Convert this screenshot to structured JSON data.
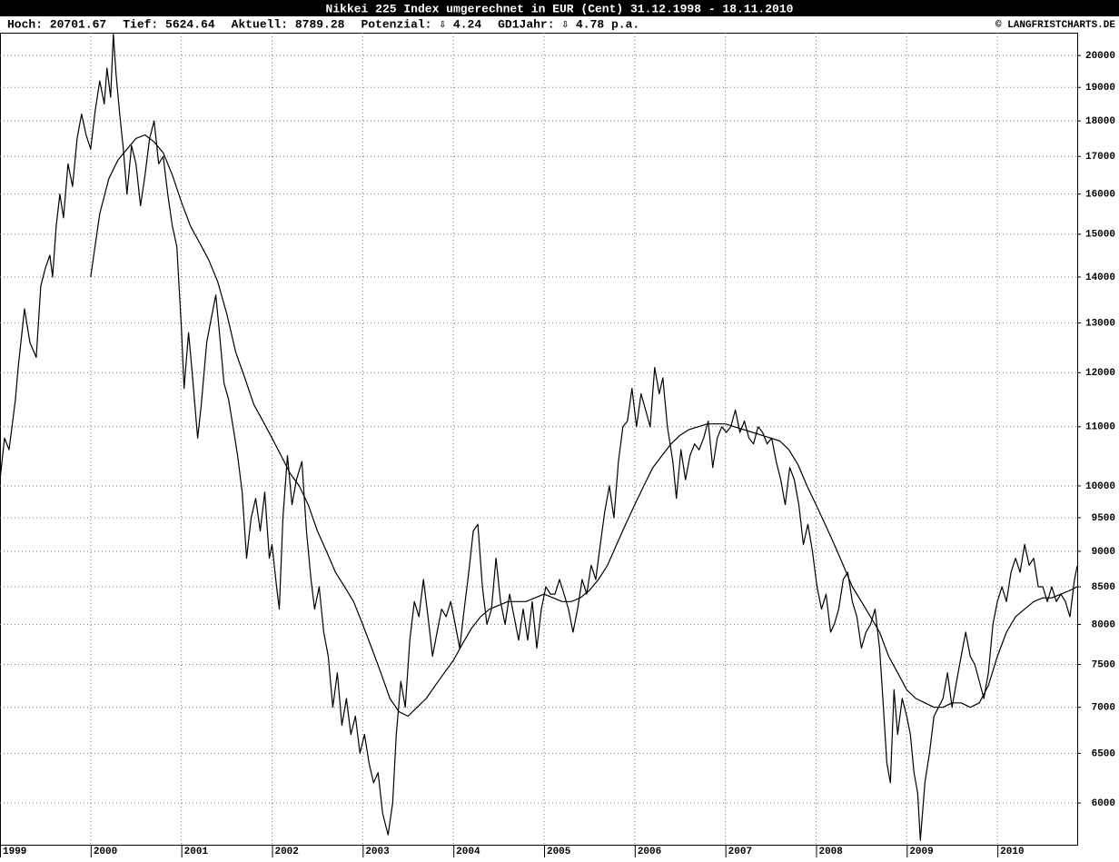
{
  "chart_data": {
    "type": "line",
    "title": "Nikkei 225 Index umgerechnet in EUR (Cent) 31.12.1998 - 18.11.2010",
    "stats": [
      "Hoch: 20701.67",
      "Tief: 5624.64",
      "Aktuell: 8789.28",
      "Potenzial: ⇩ 4.24",
      "GD1Jahr: ⇩ 4.78 p.a."
    ],
    "copyright": "© LANGFRISTCHARTS.DE",
    "log_scale": true,
    "grid": true,
    "xlim": [
      1999,
      2010.88
    ],
    "xticks": [
      1999,
      2000,
      2001,
      2002,
      2003,
      2004,
      2005,
      2006,
      2007,
      2008,
      2009,
      2010
    ],
    "ylim": [
      5610,
      20750
    ],
    "yticks": [
      6000,
      6500,
      7000,
      7500,
      8000,
      8500,
      9000,
      9500,
      10000,
      11000,
      12000,
      13000,
      14000,
      15000,
      16000,
      17000,
      18000,
      19000,
      20000
    ],
    "series": [
      {
        "color": "#000000",
        "x": [
          1999.0,
          1999.05,
          1999.1,
          1999.17,
          1999.2,
          1999.27,
          1999.33,
          1999.4,
          1999.45,
          1999.5,
          1999.55,
          1999.58,
          1999.62,
          1999.66,
          1999.7,
          1999.75,
          1999.8,
          1999.85,
          1999.9,
          1999.95,
          2000.0,
          2000.05,
          2000.1,
          2000.15,
          2000.18,
          2000.22,
          2000.25,
          2000.28,
          2000.32,
          2000.36,
          2000.4,
          2000.45,
          2000.5,
          2000.55,
          2000.6,
          2000.65,
          2000.7,
          2000.75,
          2000.8,
          2000.85,
          2000.9,
          2000.95,
          2001.0,
          2001.03,
          2001.08,
          2001.12,
          2001.18,
          2001.22,
          2001.28,
          2001.33,
          2001.38,
          2001.42,
          2001.47,
          2001.52,
          2001.58,
          2001.62,
          2001.67,
          2001.72,
          2001.77,
          2001.82,
          2001.87,
          2001.92,
          2001.97,
          2002.0,
          2002.05,
          2002.08,
          2002.12,
          2002.17,
          2002.22,
          2002.27,
          2002.33,
          2002.38,
          2002.43,
          2002.47,
          2002.52,
          2002.57,
          2002.62,
          2002.67,
          2002.72,
          2002.77,
          2002.82,
          2002.87,
          2002.92,
          2002.97,
          2003.02,
          2003.07,
          2003.12,
          2003.17,
          2003.22,
          2003.28,
          2003.33,
          2003.37,
          2003.42,
          2003.47,
          2003.52,
          2003.57,
          2003.62,
          2003.67,
          2003.72,
          2003.77,
          2003.82,
          2003.87,
          2003.92,
          2003.97,
          2004.02,
          2004.07,
          2004.12,
          2004.17,
          2004.22,
          2004.27,
          2004.32,
          2004.37,
          2004.42,
          2004.47,
          2004.52,
          2004.57,
          2004.62,
          2004.67,
          2004.72,
          2004.77,
          2004.82,
          2004.87,
          2004.92,
          2004.97,
          2005.02,
          2005.07,
          2005.12,
          2005.17,
          2005.22,
          2005.27,
          2005.32,
          2005.37,
          2005.42,
          2005.47,
          2005.52,
          2005.57,
          2005.62,
          2005.67,
          2005.72,
          2005.77,
          2005.82,
          2005.87,
          2005.92,
          2005.97,
          2006.02,
          2006.07,
          2006.12,
          2006.17,
          2006.22,
          2006.27,
          2006.31,
          2006.36,
          2006.42,
          2006.46,
          2006.51,
          2006.56,
          2006.61,
          2006.66,
          2006.71,
          2006.76,
          2006.81,
          2006.86,
          2006.91,
          2006.96,
          2007.01,
          2007.06,
          2007.11,
          2007.16,
          2007.21,
          2007.26,
          2007.31,
          2007.36,
          2007.41,
          2007.46,
          2007.51,
          2007.56,
          2007.61,
          2007.66,
          2007.71,
          2007.76,
          2007.81,
          2007.86,
          2007.91,
          2007.96,
          2008.01,
          2008.06,
          2008.11,
          2008.16,
          2008.2,
          2008.25,
          2008.3,
          2008.35,
          2008.4,
          2008.45,
          2008.5,
          2008.55,
          2008.6,
          2008.65,
          2008.7,
          2008.73,
          2008.78,
          2008.82,
          2008.86,
          2008.9,
          2008.95,
          2009.0,
          2009.04,
          2009.08,
          2009.12,
          2009.15,
          2009.2,
          2009.25,
          2009.3,
          2009.35,
          2009.4,
          2009.45,
          2009.5,
          2009.55,
          2009.6,
          2009.65,
          2009.7,
          2009.75,
          2009.8,
          2009.85,
          2009.9,
          2009.95,
          2010.0,
          2010.05,
          2010.1,
          2010.15,
          2010.2,
          2010.25,
          2010.3,
          2010.35,
          2010.4,
          2010.45,
          2010.5,
          2010.55,
          2010.6,
          2010.65,
          2010.7,
          2010.75,
          2010.8,
          2010.85,
          2010.88
        ],
        "values": [
          10100,
          10800,
          10600,
          11500,
          12100,
          13300,
          12600,
          12300,
          13800,
          14200,
          14500,
          14000,
          15200,
          16000,
          15400,
          16800,
          16200,
          17500,
          18200,
          17600,
          17200,
          18300,
          19200,
          18500,
          19600,
          18700,
          20700,
          19400,
          18200,
          17200,
          16000,
          17300,
          16800,
          15700,
          16500,
          17500,
          18000,
          16800,
          17000,
          16000,
          15200,
          14700,
          12900,
          11700,
          12800,
          12000,
          10800,
          11400,
          12600,
          13100,
          13600,
          12800,
          11800,
          11500,
          10900,
          10500,
          9900,
          8900,
          9500,
          9800,
          9300,
          9900,
          8900,
          9100,
          8500,
          8200,
          9500,
          10500,
          9700,
          10100,
          10400,
          9300,
          8600,
          8200,
          8500,
          7900,
          7600,
          7000,
          7400,
          6800,
          7100,
          6700,
          6900,
          6500,
          6700,
          6400,
          6200,
          6300,
          5900,
          5700,
          6000,
          6700,
          7300,
          7000,
          7800,
          8300,
          8100,
          8600,
          8100,
          7600,
          7900,
          8200,
          8100,
          8300,
          8000,
          7700,
          8200,
          8700,
          9300,
          9400,
          8500,
          8000,
          8200,
          8900,
          8300,
          8000,
          8400,
          8100,
          7800,
          8200,
          7800,
          8300,
          7700,
          8200,
          8500,
          8400,
          8400,
          8600,
          8400,
          8200,
          7900,
          8200,
          8600,
          8400,
          8800,
          8600,
          9100,
          9600,
          10000,
          9500,
          10400,
          11000,
          11100,
          11700,
          11000,
          11600,
          11300,
          11000,
          12100,
          11600,
          11900,
          11000,
          10400,
          9800,
          10600,
          10100,
          10500,
          10700,
          10600,
          10800,
          11100,
          10300,
          10800,
          11000,
          10900,
          11000,
          11300,
          10900,
          11100,
          10800,
          10700,
          11000,
          10900,
          10700,
          10800,
          10400,
          10100,
          9700,
          10300,
          10100,
          9700,
          9100,
          9400,
          9000,
          8500,
          8200,
          8400,
          7900,
          8000,
          8200,
          8600,
          8700,
          8300,
          8100,
          7700,
          7900,
          8000,
          8200,
          7700,
          7200,
          6400,
          6200,
          7200,
          6700,
          7100,
          6900,
          6700,
          6300,
          6100,
          5650,
          6200,
          6500,
          6900,
          7000,
          7100,
          7400,
          7000,
          7300,
          7600,
          7900,
          7600,
          7500,
          7300,
          7100,
          7400,
          8000,
          8300,
          8500,
          8300,
          8700,
          8900,
          8700,
          9100,
          8800,
          8900,
          8500,
          8500,
          8300,
          8500,
          8300,
          8400,
          8300,
          8100,
          8600,
          8789.28
        ]
      },
      {
        "color": "#000000",
        "x": [
          2000.0,
          2000.1,
          2000.2,
          2000.3,
          2000.4,
          2000.5,
          2000.6,
          2000.7,
          2000.8,
          2000.9,
          2001.0,
          2001.1,
          2001.2,
          2001.3,
          2001.4,
          2001.5,
          2001.6,
          2001.7,
          2001.8,
          2001.9,
          2002.0,
          2002.1,
          2002.2,
          2002.3,
          2002.4,
          2002.5,
          2002.6,
          2002.7,
          2002.8,
          2002.9,
          2003.0,
          2003.1,
          2003.2,
          2003.3,
          2003.4,
          2003.5,
          2003.6,
          2003.7,
          2003.8,
          2003.9,
          2004.0,
          2004.1,
          2004.2,
          2004.3,
          2004.4,
          2004.5,
          2004.6,
          2004.7,
          2004.8,
          2004.9,
          2005.0,
          2005.1,
          2005.2,
          2005.3,
          2005.4,
          2005.5,
          2005.6,
          2005.7,
          2005.8,
          2005.9,
          2006.0,
          2006.1,
          2006.2,
          2006.3,
          2006.4,
          2006.5,
          2006.6,
          2006.7,
          2006.8,
          2006.9,
          2007.0,
          2007.1,
          2007.2,
          2007.3,
          2007.4,
          2007.5,
          2007.6,
          2007.7,
          2007.8,
          2007.9,
          2008.0,
          2008.1,
          2008.2,
          2008.3,
          2008.4,
          2008.5,
          2008.6,
          2008.7,
          2008.8,
          2008.9,
          2009.0,
          2009.1,
          2009.2,
          2009.3,
          2009.4,
          2009.5,
          2009.6,
          2009.7,
          2009.8,
          2009.9,
          2010.0,
          2010.1,
          2010.2,
          2010.3,
          2010.4,
          2010.5,
          2010.6,
          2010.7,
          2010.8,
          2010.88
        ],
        "values": [
          14000,
          15500,
          16400,
          16900,
          17200,
          17500,
          17600,
          17400,
          17100,
          16500,
          15800,
          15200,
          14800,
          14400,
          13900,
          13200,
          12400,
          11900,
          11400,
          11100,
          10800,
          10500,
          10200,
          10000,
          9700,
          9300,
          9000,
          8700,
          8500,
          8300,
          8000,
          7700,
          7400,
          7100,
          6950,
          6900,
          7000,
          7100,
          7250,
          7400,
          7550,
          7750,
          7950,
          8100,
          8200,
          8250,
          8300,
          8300,
          8300,
          8350,
          8400,
          8350,
          8300,
          8300,
          8350,
          8450,
          8600,
          8800,
          9100,
          9400,
          9700,
          10000,
          10300,
          10500,
          10700,
          10850,
          10950,
          11000,
          11050,
          11050,
          11050,
          11000,
          10950,
          10900,
          10850,
          10800,
          10750,
          10600,
          10350,
          10000,
          9700,
          9400,
          9100,
          8800,
          8500,
          8300,
          8100,
          7900,
          7600,
          7400,
          7200,
          7100,
          7050,
          7000,
          7000,
          7050,
          7050,
          7000,
          7050,
          7250,
          7600,
          7900,
          8100,
          8200,
          8300,
          8350,
          8350,
          8400,
          8450,
          8500
        ]
      }
    ]
  }
}
